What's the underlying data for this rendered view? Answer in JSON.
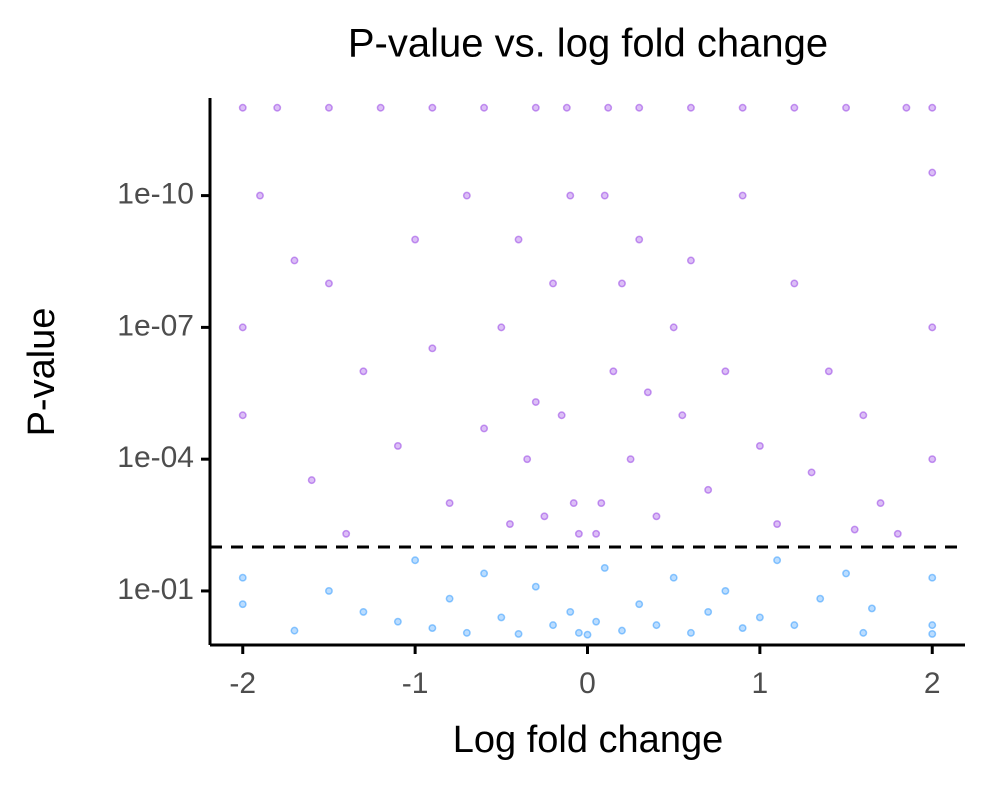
{
  "chart_data": {
    "type": "scatter",
    "title": "P-value vs. log fold change",
    "x_label": "Log fold change",
    "y_label": "P-value",
    "xlim": [
      -2.19,
      2.19
    ],
    "xticks": [
      -2,
      -1,
      0,
      1,
      2
    ],
    "ylim": [
      1.7,
      6e-13
    ],
    "log_y": true,
    "yticks": [
      {
        "value": 0.1,
        "label": "1e-01"
      },
      {
        "value": 0.0001,
        "label": "1e-04"
      },
      {
        "value": 1e-07,
        "label": "1e-07"
      },
      {
        "value": 1e-10,
        "label": "1e-10"
      }
    ],
    "hline": 0.01,
    "opacity": 0.3,
    "series": [
      {
        "color": "#8a2be2",
        "x": [
          -2,
          -1.8,
          -1.5,
          -1.2,
          -0.9,
          -0.6,
          -0.3,
          -0.12,
          0.12,
          0.3,
          0.6,
          0.9,
          1.2,
          1.5,
          1.85,
          2,
          -1.9,
          -1.7,
          -1.5,
          -1.3,
          -1.1,
          -1.0,
          -0.9,
          -0.8,
          -0.7,
          -0.6,
          -0.5,
          -0.45,
          -0.4,
          -0.35,
          -0.3,
          -0.25,
          -0.2,
          -0.15,
          -0.1,
          -0.08,
          -0.05,
          -2,
          -2,
          -1.6,
          -1.4,
          0.05,
          0.08,
          0.1,
          0.15,
          0.2,
          0.25,
          0.3,
          0.35,
          0.4,
          0.5,
          0.55,
          0.6,
          0.7,
          0.8,
          0.9,
          1.0,
          1.1,
          1.2,
          1.3,
          1.4,
          1.55,
          1.6,
          1.7,
          1.8,
          2,
          2,
          2
        ],
        "values": [
          1e-12,
          1e-12,
          1e-12,
          1e-12,
          1e-12,
          1e-12,
          1e-12,
          1e-12,
          1e-12,
          1e-12,
          1e-12,
          1e-12,
          1e-12,
          1e-12,
          1e-12,
          1e-12,
          1e-10,
          3e-09,
          1e-08,
          1e-06,
          5e-05,
          1e-09,
          3e-07,
          0.001,
          1e-10,
          2e-05,
          1e-07,
          0.003,
          1e-09,
          0.0001,
          5e-06,
          0.002,
          1e-08,
          1e-05,
          1e-10,
          0.001,
          0.005,
          1e-05,
          1e-07,
          0.0003,
          0.005,
          0.005,
          0.001,
          1e-10,
          1e-06,
          1e-08,
          0.0001,
          1e-09,
          3e-06,
          0.002,
          1e-07,
          1e-05,
          3e-09,
          0.0005,
          1e-06,
          1e-10,
          5e-05,
          0.003,
          1e-08,
          0.0002,
          1e-06,
          0.004,
          1e-05,
          0.001,
          0.005,
          1e-07,
          0.0001,
          3e-11
        ]
      },
      {
        "color": "#1e90ff",
        "x": [
          -2,
          -2,
          -1.7,
          -1.5,
          -1.3,
          -1.1,
          -1.0,
          -0.9,
          -0.8,
          -0.7,
          -0.6,
          -0.5,
          -0.4,
          -0.3,
          -0.2,
          -0.1,
          -0.05,
          0,
          0.05,
          0.1,
          0.2,
          0.3,
          0.4,
          0.5,
          0.6,
          0.7,
          0.8,
          0.9,
          1.0,
          1.1,
          1.2,
          1.35,
          1.5,
          1.65,
          1.6,
          2,
          2,
          2
        ],
        "values": [
          0.05,
          0.2,
          0.8,
          0.1,
          0.3,
          0.5,
          0.02,
          0.7,
          0.15,
          0.9,
          0.04,
          0.4,
          0.95,
          0.08,
          0.6,
          0.3,
          0.9,
          0.99,
          0.5,
          0.03,
          0.8,
          0.2,
          0.6,
          0.05,
          0.9,
          0.3,
          0.1,
          0.7,
          0.4,
          0.02,
          0.6,
          0.15,
          0.04,
          0.25,
          0.9,
          0.05,
          0.6,
          0.95
        ]
      }
    ]
  }
}
